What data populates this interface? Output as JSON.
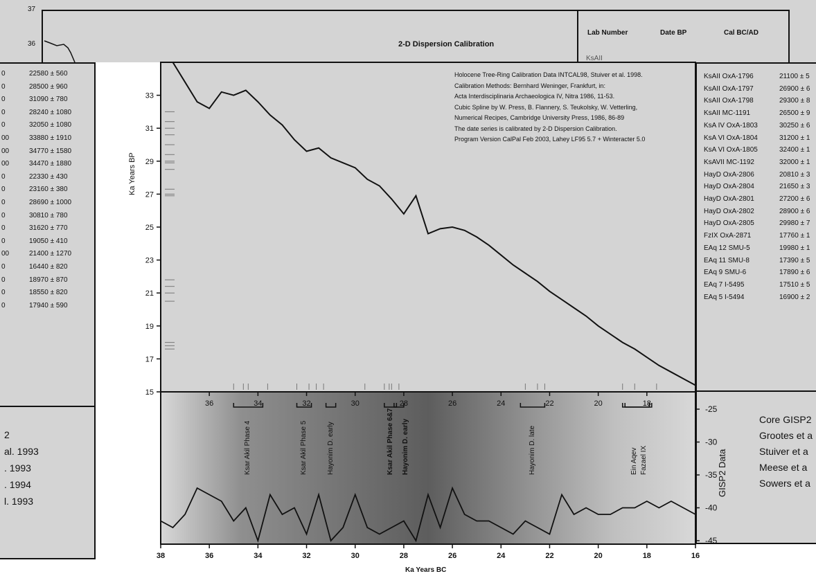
{
  "chart_data": {
    "type": "line",
    "title": "2-D Dispersion Calibration",
    "xlabel": "Ka Years BC",
    "ylabel": "Ka Years BP",
    "xlim": [
      38,
      16
    ],
    "ylim": [
      15,
      35
    ],
    "x_ticks": [
      "38",
      "36",
      "34",
      "32",
      "30",
      "28",
      "26",
      "24",
      "22",
      "20",
      "18",
      "16"
    ],
    "top_x_ticks": [
      "36",
      "34",
      "32",
      "30",
      "28",
      "26",
      "24",
      "22",
      "20",
      "18"
    ],
    "y_ticks": [
      "15",
      "17",
      "19",
      "21",
      "23",
      "25",
      "27",
      "29",
      "31",
      "33"
    ],
    "upper_left_ticks": [
      "37",
      "36"
    ],
    "notes": [
      "Holocene Tree-Ring Calibration Data INTCAL98, Stuiver et al. 1998.",
      "Calibration Methods: Bernhard Weninger, Frankfurt, in:",
      "Acta Interdisciplinaria Archaeologica IV, Nitra 1986, 11-53.",
      "Cubic Spline by W. Press, B. Flannery, S. Teukolsky, W. Vetterling,",
      "Numerical Recipes, Cambridge University Press, 1986, 86-89",
      "The date series is calibrated by 2-D Dispersion Calibration.",
      "Program Version CalPal Feb 2003, Lahey LF95 5.7 + Winteracter 5.0"
    ],
    "calibration_curve": {
      "x": [
        38,
        37.5,
        37,
        36.5,
        36,
        35.5,
        35,
        34.5,
        34,
        33.5,
        33,
        32.5,
        32,
        31.5,
        31,
        30.5,
        30,
        29.5,
        29,
        28.5,
        28,
        27.5,
        27,
        26.5,
        26,
        25.5,
        25,
        24.5,
        24,
        23.5,
        23,
        22.5,
        22,
        21.5,
        21,
        20.5,
        20,
        19.5,
        19,
        18.5,
        18,
        17.5,
        17,
        16.5,
        16
      ],
      "y": [
        37,
        35,
        33.8,
        32.6,
        32.2,
        33.2,
        33.0,
        33.3,
        32.6,
        31.8,
        31.2,
        30.3,
        29.6,
        29.8,
        29.2,
        28.9,
        28.6,
        27.9,
        27.5,
        26.7,
        25.8,
        26.9,
        24.6,
        24.9,
        25.0,
        24.8,
        24.4,
        23.9,
        23.3,
        22.7,
        22.2,
        21.7,
        21.1,
        20.6,
        20.1,
        19.6,
        19.0,
        18.5,
        18.0,
        17.6,
        17.1,
        16.6,
        16.2,
        15.8,
        15.4
      ]
    },
    "bp_density_ticks": [
      17.8,
      17.6,
      18.0,
      21.0,
      21.8,
      20.5,
      21.4,
      26.9,
      27.3,
      27.0,
      28.9,
      29.4,
      30.6,
      31.0,
      31.4,
      32.0,
      30.0,
      29.0,
      28.5
    ],
    "bc_density_ticks": [
      35,
      34.6,
      34.4,
      33.6,
      32.4,
      31.9,
      31.6,
      31.3,
      29.6,
      28.8,
      28.6,
      28.5,
      28.2,
      23.0,
      22.5,
      22.2,
      19.0,
      18.5,
      17.6
    ],
    "phases": [
      {
        "label": "Ksar Akil Phase 4",
        "from": 35.0,
        "to": 33.8,
        "bold": false
      },
      {
        "label": "Ksar Akil Phase 5",
        "from": 32.4,
        "to": 31.8,
        "bold": false
      },
      {
        "label": "Hayonim D. early",
        "from": 31.2,
        "to": 30.8,
        "bold": false
      },
      {
        "label": "Ksar Akil Phase 6&7",
        "from": 28.8,
        "to": 28.3,
        "bold": true
      },
      {
        "label": "Hayonim D. early",
        "from": 28.4,
        "to": 28.0,
        "bold": true
      },
      {
        "label": "Hayonim D. late",
        "from": 23.2,
        "to": 22.2,
        "bold": false
      },
      {
        "label": "Ein Aqev",
        "from": 19.0,
        "to": 17.8,
        "bold": false
      },
      {
        "label": "Fazael IX",
        "from": 18.9,
        "to": 17.9,
        "bold": false
      }
    ],
    "gisp2": {
      "ylabel": "GISP2 Data",
      "y_ticks": [
        "-25",
        "-30",
        "-35",
        "-40",
        "-45"
      ],
      "x": [
        38,
        37.5,
        37,
        36.5,
        36,
        35.5,
        35,
        34.5,
        34,
        33.5,
        33,
        32.5,
        32,
        31.5,
        31,
        30.5,
        30,
        29.5,
        29,
        28.5,
        28,
        27.5,
        27,
        26.5,
        26,
        25.5,
        25,
        24.5,
        24,
        23.5,
        23,
        22.5,
        22,
        21.5,
        21,
        20.5,
        20,
        19.5,
        19,
        18.5,
        18,
        17.5,
        17,
        16.5,
        16
      ],
      "y": [
        -42,
        -43,
        -41,
        -37,
        -38,
        -39,
        -42,
        -40,
        -45,
        -38,
        -41,
        -40,
        -44,
        -38,
        -45,
        -43,
        -38,
        -43,
        -44,
        -43,
        -42,
        -45,
        -38,
        -43,
        -37,
        -41,
        -42,
        -42,
        -43,
        -44,
        -42,
        -43,
        -44,
        -38,
        -41,
        -40,
        -41,
        -41,
        -40,
        -40,
        -39,
        -40,
        -39,
        -40,
        -41
      ],
      "legend": [
        "Core GISP2",
        "Grootes et a",
        "Stuiver et a",
        "Meese et a",
        "Sowers et a"
      ]
    }
  },
  "right_table": {
    "headers": [
      "Lab Number",
      "Date BP",
      "Cal BC/AD"
    ],
    "first_lab_partial": "KsAII",
    "rows": [
      {
        "lab": "KsAII OxA-1796",
        "date": "21100 ± 5"
      },
      {
        "lab": "KsAII OxA-1797",
        "date": "26900 ± 6"
      },
      {
        "lab": "KsAII OxA-1798",
        "date": "29300 ± 8"
      },
      {
        "lab": "KsAII MC-1191",
        "date": "26500 ± 9"
      },
      {
        "lab": "KsA IV OxA-1803",
        "date": "30250 ± 6"
      },
      {
        "lab": "KsA VI OxA-1804",
        "date": "31200 ± 1"
      },
      {
        "lab": "KsA VI OxA-1805",
        "date": "32400 ± 1"
      },
      {
        "lab": "KsAVII MC-1192",
        "date": "32000 ± 1"
      },
      {
        "lab": "HayD OxA-2806",
        "date": "20810 ± 3"
      },
      {
        "lab": "HayD OxA-2804",
        "date": "21650 ± 3"
      },
      {
        "lab": "HayD OxA-2801",
        "date": "27200 ± 6"
      },
      {
        "lab": "HayD OxA-2802",
        "date": "28900 ± 6"
      },
      {
        "lab": "HayD OxA-2805",
        "date": "29980 ± 7"
      },
      {
        "lab": "FzIX OxA-2871",
        "date": "17760 ± 1"
      },
      {
        "lab": "EAq 12 SMU-5",
        "date": "19980 ± 1"
      },
      {
        "lab": "EAq 11 SMU-8",
        "date": "17390 ± 5"
      },
      {
        "lab": "EAq 9 SMU-6",
        "date": "17890 ± 6"
      },
      {
        "lab": "EAq 7 I-5495",
        "date": "17510 ± 5"
      },
      {
        "lab": "EAq 5 I-5494",
        "date": "16900 ± 2"
      }
    ]
  },
  "left_table": {
    "rows": [
      {
        "a": "0",
        "b": "22580 ± 560"
      },
      {
        "a": "0",
        "b": "28500 ± 960"
      },
      {
        "a": "0",
        "b": "31090 ± 780"
      },
      {
        "a": "0",
        "b": "28240 ± 1080"
      },
      {
        "a": "0",
        "b": "32050 ± 1080"
      },
      {
        "a": "00",
        "b": "33880 ± 1910"
      },
      {
        "a": "00",
        "b": "34770 ± 1580"
      },
      {
        "a": "00",
        "b": "34470 ± 1880"
      },
      {
        "a": "0",
        "b": "22330 ± 430"
      },
      {
        "a": "0",
        "b": "23160 ± 380"
      },
      {
        "a": "0",
        "b": "28690 ± 1000"
      },
      {
        "a": "0",
        "b": "30810 ± 780"
      },
      {
        "a": "0",
        "b": "31620 ± 770"
      },
      {
        "a": "0",
        "b": "19050 ± 410"
      },
      {
        "a": "00",
        "b": "21400 ± 1270"
      },
      {
        "a": "0",
        "b": "16440 ± 820"
      },
      {
        "a": "0",
        "b": "18970 ± 870"
      },
      {
        "a": "0",
        "b": "18550 ± 820"
      },
      {
        "a": "0",
        "b": "17940 ± 590"
      }
    ],
    "refs_title": "2",
    "refs": [
      "al. 1993",
      ". 1993",
      ". 1994",
      "l. 1993"
    ]
  }
}
